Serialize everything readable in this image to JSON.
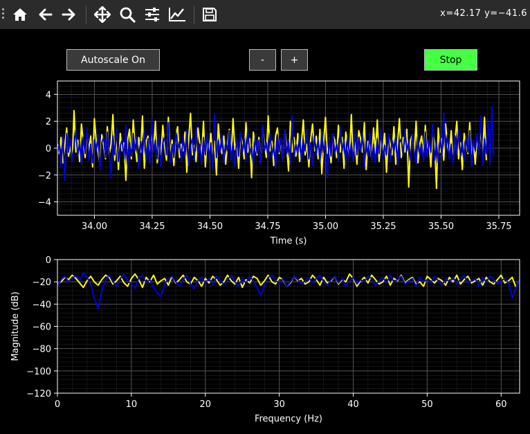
{
  "toolbar": {
    "tools": [
      {
        "name": "home-icon"
      },
      {
        "name": "back-arrow-icon"
      },
      {
        "name": "forward-arrow-icon"
      },
      {
        "name": "pan-icon"
      },
      {
        "name": "zoom-icon"
      },
      {
        "name": "subplots-config-icon"
      },
      {
        "name": "edit-axes-icon"
      },
      {
        "name": "save-icon"
      }
    ],
    "coords_text": "x=42.17 y=−41.6"
  },
  "controls": {
    "autoscale_label": "Autoscale On",
    "minus_label": "-",
    "plus_label": "+",
    "stop_label": "Stop",
    "stop_color": "#44ff44",
    "button_bg": "#3a3a3a"
  },
  "colors": {
    "series_a": "#ffff00",
    "series_b": "#0000dd",
    "grid": "#555555",
    "axes_bg": "#000000"
  },
  "chart_data": [
    {
      "type": "line",
      "title": "",
      "xlabel": "Time (s)",
      "ylabel": "",
      "xlim": [
        33.84,
        35.84
      ],
      "ylim": [
        -5,
        5
      ],
      "xticks": [
        "34.00",
        "34.25",
        "34.50",
        "34.75",
        "35.00",
        "35.25",
        "35.50",
        "35.75"
      ],
      "yticks": [
        "4",
        "2",
        "0",
        "−2",
        "−4"
      ],
      "grid": true,
      "series": [
        {
          "color": "#ffff00",
          "x_start": 33.84,
          "x_step": 0.008,
          "values": [
            0.3,
            -0.4,
            0.8,
            -1.1,
            0.2,
            1.5,
            -0.6,
            0.1,
            -0.9,
            2.8,
            -0.3,
            0.6,
            -1.0,
            1.8,
            0.4,
            -0.7,
            1.2,
            -0.2,
            0.9,
            -1.4,
            2.2,
            0.5,
            -0.3,
            -1.2,
            1.0,
            0.2,
            -0.8,
            1.6,
            -0.5,
            0.3,
            2.5,
            -0.9,
            0.7,
            -1.6,
            1.1,
            -0.2,
            0.4,
            -2.4,
            0.6,
            1.4,
            -0.8,
            2.1,
            0.2,
            -1.0,
            0.8,
            -0.3,
            2.4,
            -1.5,
            0.5,
            0.9,
            -0.6,
            1.3,
            -0.2,
            2.0,
            -1.1,
            0.4,
            -0.5,
            1.7,
            0.1,
            -0.9,
            2.3,
            -0.4,
            0.6,
            -1.3,
            0.9,
            1.6,
            -0.7,
            0.3,
            -0.2,
            1.2,
            -1.8,
            0.7,
            2.6,
            -0.5,
            0.2,
            -1.0,
            1.5,
            0.4,
            -0.6,
            2.0,
            -1.4,
            0.8,
            -0.3,
            1.1,
            -0.8,
            0.5,
            -2.0,
            1.8,
            0.2,
            -0.4,
            0.9,
            -1.2,
            0.3,
            1.4,
            -0.6,
            2.2,
            -0.1,
            0.6,
            -1.5,
            1.0,
            0.4,
            -0.8,
            1.9,
            -0.3,
            0.7,
            -2.2,
            1.2,
            0.1,
            -0.5,
            0.8,
            -1.1,
            1.6,
            0.3,
            -0.7,
            2.4,
            -0.2,
            0.5,
            -1.3,
            0.9,
            1.5,
            -0.4,
            0.6,
            -0.9,
            1.3,
            0.2,
            -1.7,
            2.0,
            -0.3,
            0.8,
            -0.6,
            1.1,
            -1.0,
            0.4,
            2.1,
            -0.5,
            0.3,
            -1.4,
            0.7,
            1.8,
            -0.2,
            0.9,
            -0.8,
            1.4,
            -1.9,
            0.5,
            2.3,
            -0.4,
            0.2,
            -1.1,
            1.0,
            0.6,
            -0.7,
            1.7,
            -0.3,
            0.8,
            -1.5,
            1.2,
            0.1,
            -0.6,
            2.5,
            -0.9,
            0.4,
            -1.2,
            1.3,
            0.7,
            -0.3,
            1.9,
            -1.6,
            0.5,
            0.2,
            -0.8,
            1.5,
            -0.4,
            2.1,
            -1.0,
            0.6,
            -0.2,
            1.1,
            -1.8,
            0.9,
            0.3,
            -0.5,
            1.6,
            -1.2,
            0.4,
            2.2,
            -0.7,
            0.8,
            -0.3,
            1.4,
            -2.9,
            0.6,
            1.0,
            -0.4,
            2.0,
            -1.1,
            0.3,
            0.9,
            -0.6,
            1.7,
            -0.2,
            0.5,
            -1.4,
            1.2,
            0.4,
            -3.0,
            1.5,
            -0.3,
            0.7,
            -0.9,
            1.8,
            0.2,
            -0.5,
            1.3,
            -1.0,
            0.6,
            2.0,
            -0.8,
            0.4,
            -1.6,
            1.1,
            0.3,
            -0.4,
            1.9,
            -0.7,
            0.5,
            -1.2,
            0.8,
            -0.2,
            1.4,
            -0.6,
            2.3,
            -0.9
          ]
        },
        {
          "color": "#0000dd",
          "x_start": 33.84,
          "x_step": 0.008,
          "values": [
            -0.5,
            0.4,
            -1.4,
            0.9,
            -2.4,
            1.1,
            -0.3,
            0.7,
            -1.0,
            0.2,
            1.3,
            -0.6,
            0.5,
            -1.2,
            0.8,
            -0.4,
            1.5,
            -0.9,
            0.3,
            -1.1,
            0.6,
            -0.2,
            1.0,
            -1.6,
            0.4,
            0.8,
            -0.7,
            1.2,
            -0.3,
            -2.2,
            0.9,
            -0.5,
            1.4,
            -1.0,
            0.2,
            0.6,
            -0.8,
            1.7,
            -1.3,
            0.4,
            -0.6,
            1.1,
            -0.2,
            0.9,
            -1.5,
            0.5,
            -0.4,
            1.3,
            -0.9,
            0.7,
            -1.2,
            2.2,
            -0.3,
            0.6,
            -0.8,
            1.0,
            -1.4,
            0.4,
            0.8,
            -0.5,
            1.9,
            -1.1,
            0.3,
            -0.7,
            1.2,
            -0.2,
            0.5,
            -1.0,
            0.9,
            -0.6,
            1.4,
            -1.3,
            0.2,
            0.7,
            -0.9,
            1.6,
            -0.4,
            0.3,
            -1.2,
            0.8,
            -0.5,
            1.1,
            -0.8,
            0.4,
            -1.6,
            2.5,
            -0.7,
            0.6,
            -0.3,
            1.0,
            -1.1,
            0.5,
            -0.2,
            1.3,
            -0.9,
            0.4,
            -1.4,
            0.8,
            -0.6,
            1.2,
            -0.3,
            0.7,
            -1.0,
            1.5,
            -0.5,
            0.2,
            -1.3,
            0.9,
            -0.4,
            0.6,
            -1.1,
            1.7,
            -0.2,
            0.4,
            -0.8,
            1.1,
            -0.6,
            0.3,
            -1.5,
            1.0,
            -0.3,
            0.8,
            -0.9,
            1.3,
            -0.4,
            0.5,
            -1.2,
            2.4,
            -0.7,
            0.3,
            -0.5,
            1.0,
            -1.0,
            0.6,
            -0.2,
            1.4,
            -0.8,
            0.4,
            -1.3,
            0.9,
            -0.5,
            0.7,
            -1.1,
            1.2,
            -0.3,
            0.5,
            -2.2,
            0.8,
            -0.6,
            1.1,
            -0.4,
            0.3,
            -0.9,
            1.6,
            -0.2,
            0.6,
            -1.2,
            0.9,
            -0.7,
            0.4,
            -1.0,
            1.3,
            -0.5,
            0.8,
            -0.3,
            1.0,
            -1.4,
            0.5,
            -0.6,
            1.2,
            -0.9,
            0.3,
            -1.1,
            0.7,
            -0.4,
            1.5,
            -0.8,
            0.2,
            -0.5,
            1.1,
            -1.0,
            0.6,
            -0.3,
            0.9,
            -1.3,
            0.4,
            0.7,
            -0.6,
            1.4,
            -0.2,
            0.5,
            -0.9,
            1.0,
            -0.4,
            -1.2,
            0.8,
            -0.5,
            0.3,
            -1.0,
            1.2,
            -0.7,
            0.6,
            -0.3,
            1.8,
            -0.9,
            0.4,
            -1.1,
            0.7,
            -0.5,
            2.6,
            -0.2,
            1.0,
            -0.8,
            0.3,
            -1.2,
            0.9,
            -0.4,
            1.4,
            -0.6,
            0.5,
            -1.0,
            0.8,
            -0.3,
            1.3,
            -1.4,
            0.6,
            -0.2,
            1.1,
            -0.5,
            2.4,
            -1.3,
            0.7,
            -0.4,
            1.9,
            -1.2,
            3.1,
            -0.6
          ]
        }
      ]
    },
    {
      "type": "line",
      "title": "",
      "xlabel": "Frequency (Hz)",
      "ylabel": "Magnitude (dB)",
      "xlim": [
        0,
        62.5
      ],
      "ylim": [
        -120,
        0
      ],
      "xticks": [
        "0",
        "10",
        "20",
        "30",
        "40",
        "50",
        "60"
      ],
      "yticks": [
        "0",
        "−20",
        "−40",
        "−60",
        "−80",
        "−100",
        "−120"
      ],
      "grid": true,
      "series": [
        {
          "color": "#ffff00",
          "x_start": 0,
          "x_step": 0.5,
          "values": [
            -22,
            -20,
            -16,
            -18,
            -14,
            -17,
            -21,
            -25,
            -19,
            -15,
            -20,
            -23,
            -18,
            -14,
            -16,
            -22,
            -19,
            -15,
            -21,
            -24,
            -17,
            -13,
            -18,
            -25,
            -16,
            -20,
            -14,
            -22,
            -19,
            -17,
            -23,
            -15,
            -21,
            -18,
            -14,
            -20,
            -22,
            -16,
            -19,
            -24,
            -17,
            -21,
            -15,
            -18,
            -23,
            -20,
            -14,
            -19,
            -22,
            -16,
            -25,
            -18,
            -21,
            -15,
            -17,
            -23,
            -19,
            -14,
            -20,
            -22,
            -16,
            -18,
            -24,
            -21,
            -15,
            -19,
            -17,
            -22,
            -20,
            -14,
            -18,
            -23,
            -16,
            -21,
            -19,
            -15,
            -22,
            -18,
            -20,
            -13,
            -17,
            -24,
            -19,
            -16,
            -21,
            -14,
            -18,
            -22,
            -20,
            -15,
            -23,
            -17,
            -19,
            -14,
            -21,
            -18,
            -16,
            -22,
            -20,
            -24,
            -15,
            -18,
            -21,
            -17,
            -19,
            -23,
            -16,
            -20,
            -14,
            -22,
            -18,
            -15,
            -21,
            -19,
            -17,
            -23,
            -16,
            -20,
            -22,
            -18,
            -14,
            -21,
            -19,
            -16,
            -25,
            -18
          ]
        },
        {
          "color": "#0000dd",
          "x_start": 0,
          "x_step": 0.5,
          "values": [
            -24,
            -18,
            -15,
            -20,
            -17,
            -14,
            -19,
            -12,
            -16,
            -22,
            -35,
            -44,
            -28,
            -18,
            -14,
            -20,
            -24,
            -17,
            -13,
            -19,
            -22,
            -26,
            -16,
            -14,
            -21,
            -18,
            -25,
            -30,
            -33,
            -22,
            -17,
            -15,
            -20,
            -24,
            -18,
            -14,
            -22,
            -26,
            -19,
            -16,
            -21,
            -17,
            -23,
            -15,
            -19,
            -22,
            -18,
            -14,
            -20,
            -24,
            -17,
            -21,
            -15,
            -19,
            -26,
            -32,
            -22,
            -16,
            -14,
            -19,
            -21,
            -17,
            -24,
            -20,
            -15,
            -18,
            -22,
            -19,
            -16,
            -21,
            -17,
            -14,
            -20,
            -23,
            -18,
            -15,
            -21,
            -17,
            -24,
            -19,
            -16,
            -22,
            -18,
            -20,
            -15,
            -17,
            -23,
            -19,
            -16,
            -21,
            -14,
            -20,
            -18,
            -15,
            -22,
            -19,
            -17,
            -24,
            -16,
            -20,
            -18,
            -21,
            -15,
            -19,
            -23,
            -17,
            -20,
            -16,
            -22,
            -18,
            -14,
            -21,
            -19,
            -17,
            -24,
            -16,
            -20,
            -15,
            -18,
            -22,
            -19,
            -17,
            -21,
            -34,
            -25,
            -18
          ]
        }
      ]
    }
  ]
}
